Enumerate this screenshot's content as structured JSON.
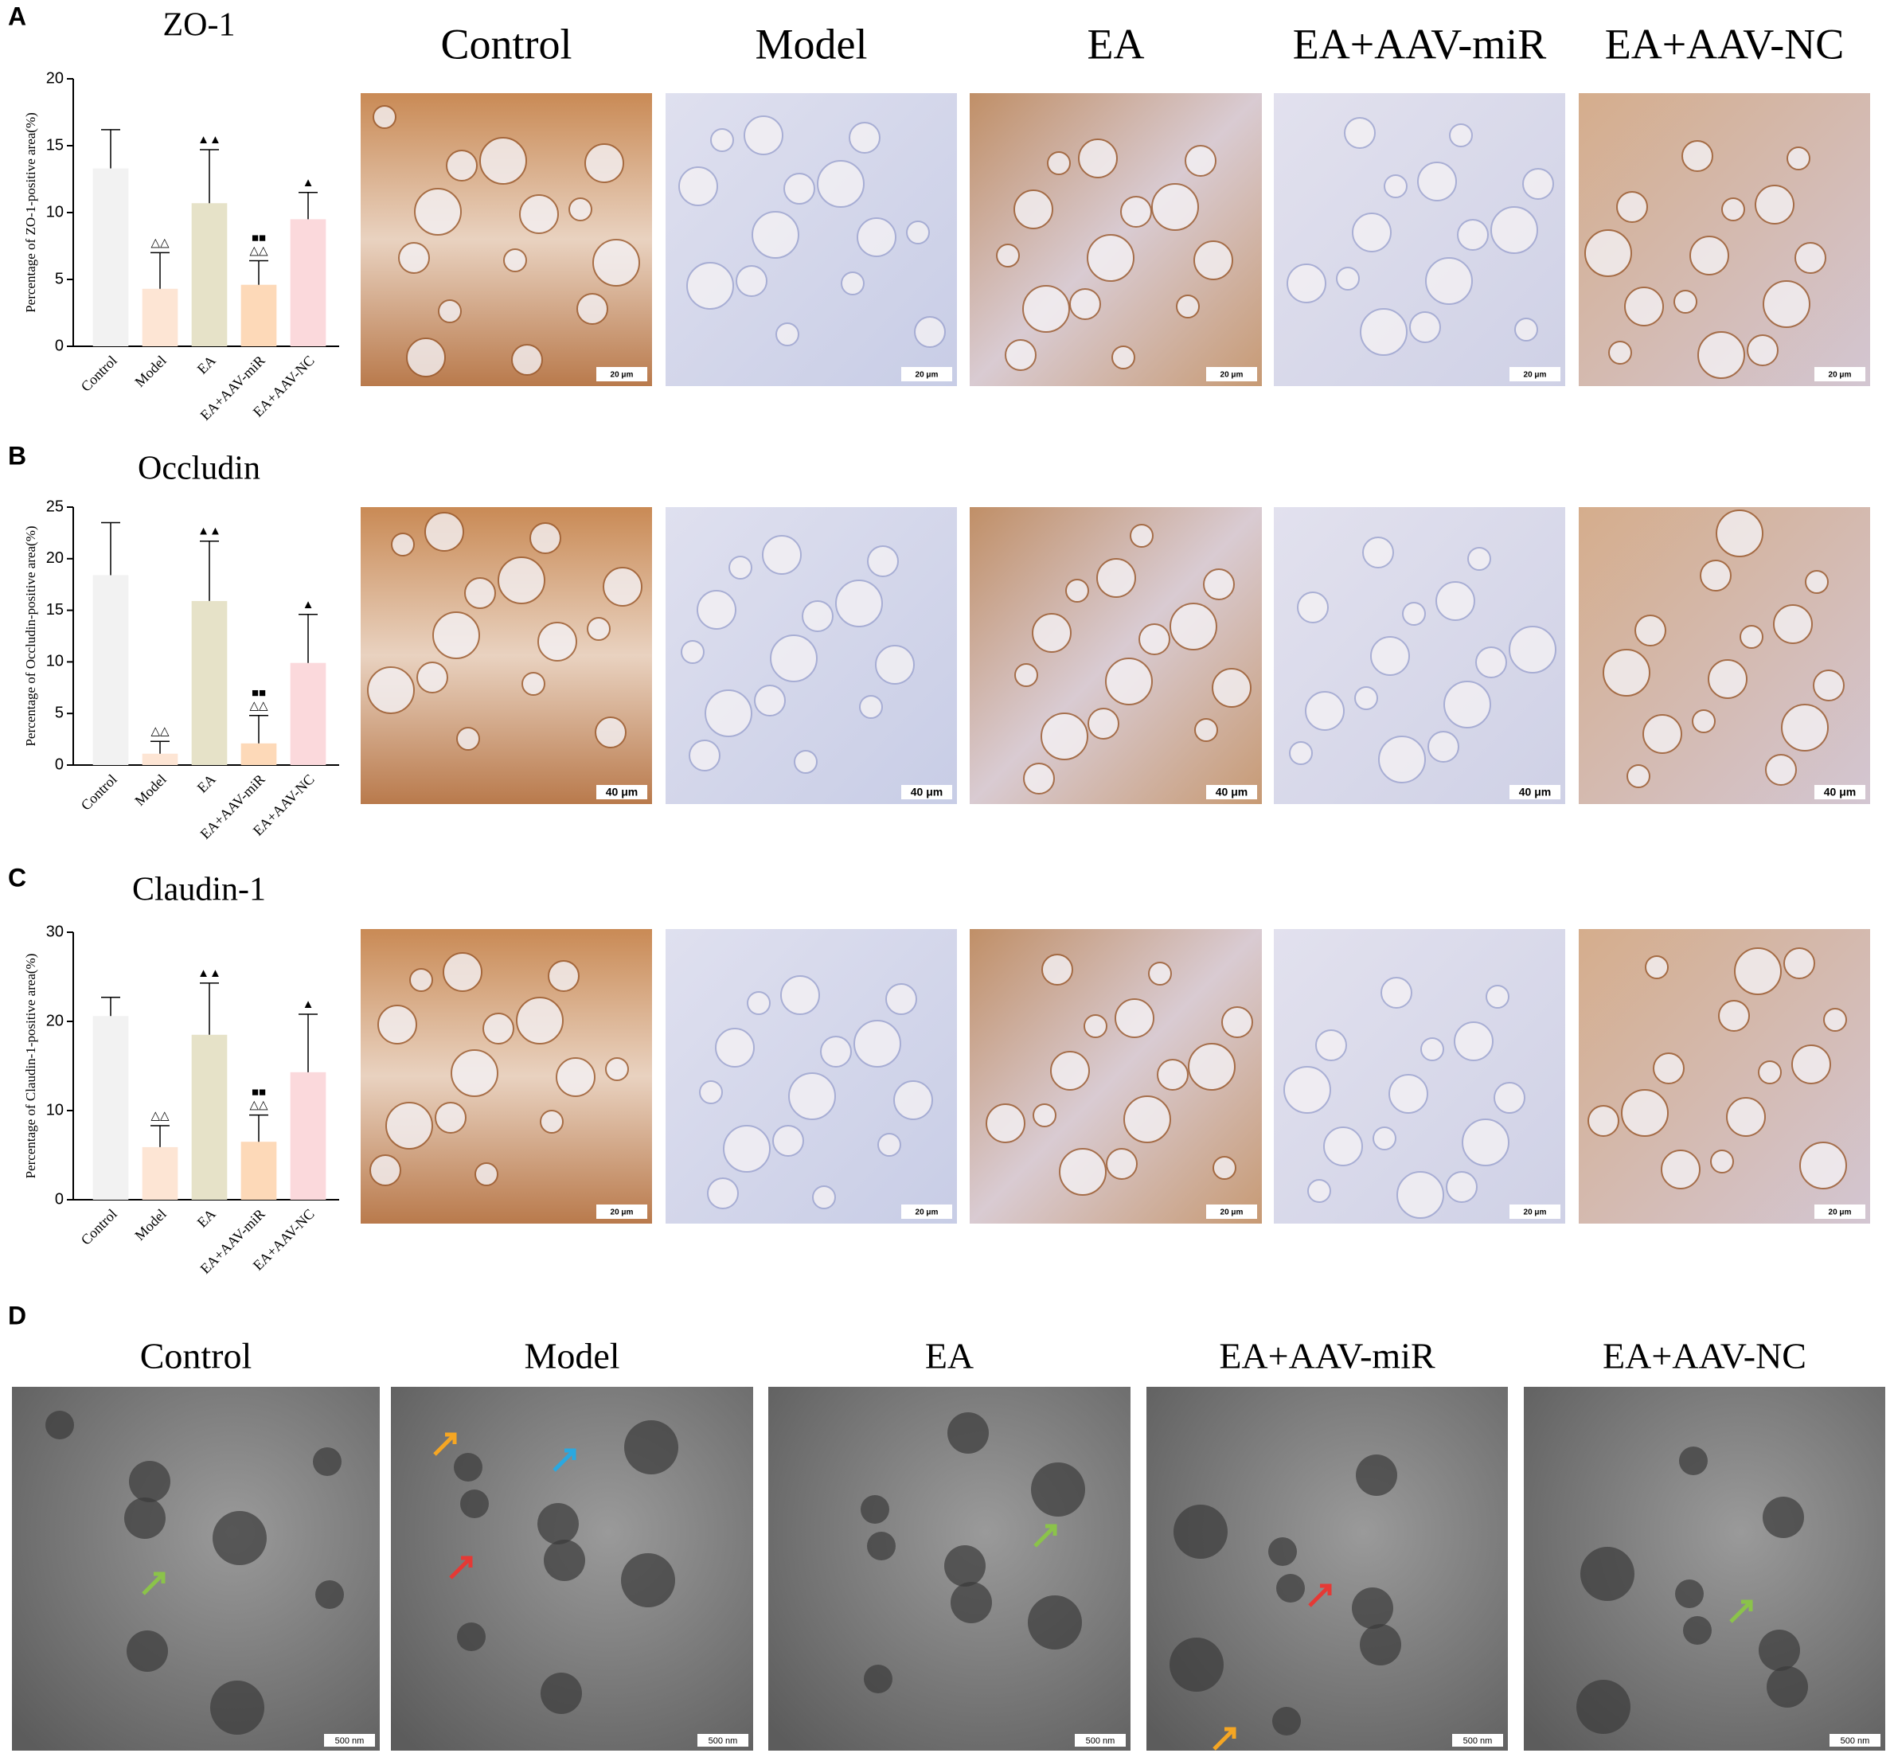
{
  "panel_labels": [
    "A",
    "B",
    "C",
    "D"
  ],
  "column_titles": [
    "Control",
    "Model",
    "EA",
    "EA+AAV-miR",
    "EA+AAV-NC"
  ],
  "scale_bars": [
    "20 μm",
    "40 μm",
    "20 μm",
    "500 nm"
  ],
  "chart_data": [
    {
      "type": "bar",
      "title": "ZO-1",
      "ylabel": "Percentage of ZO-1-positive area(%)",
      "categories": [
        "Control",
        "Model",
        "EA",
        "EA+AAV-miR",
        "EA+AAV-NC"
      ],
      "values": [
        13.3,
        4.3,
        10.7,
        4.6,
        9.5
      ],
      "errors": [
        2.9,
        2.7,
        4.0,
        1.8,
        2.0
      ],
      "colors": [
        "#f2f2f2",
        "#fde5d4",
        "#e6e2c8",
        "#fdd9b8",
        "#fbd9dc"
      ],
      "markers": [
        [],
        [
          "△△"
        ],
        [
          "▲▲"
        ],
        [
          "■■",
          "△△"
        ],
        [
          "▲"
        ]
      ],
      "ylim": [
        0,
        20
      ],
      "yticks": [
        0,
        5,
        10,
        15,
        20
      ]
    },
    {
      "type": "bar",
      "title": "Occludin",
      "ylabel": "Percentage of Occludin-positive area(%)",
      "categories": [
        "Control",
        "Model",
        "EA",
        "EA+AAV-miR",
        "EA+AAV-NC"
      ],
      "values": [
        18.4,
        1.1,
        15.9,
        2.1,
        9.9
      ],
      "errors": [
        5.1,
        1.2,
        5.8,
        2.7,
        4.7
      ],
      "colors": [
        "#f2f2f2",
        "#fde5d4",
        "#e6e2c8",
        "#fdd9b8",
        "#fbd9dc"
      ],
      "markers": [
        [],
        [
          "△△"
        ],
        [
          "▲▲"
        ],
        [
          "■■",
          "△△"
        ],
        [
          "▲"
        ]
      ],
      "ylim": [
        0,
        25
      ],
      "yticks": [
        0,
        5,
        10,
        15,
        20,
        25
      ]
    },
    {
      "type": "bar",
      "title": "Claudin-1",
      "ylabel": "Percentage of Claudin-1-positive area(%)",
      "categories": [
        "Control",
        "Model",
        "EA",
        "EA+AAV-miR",
        "EA+AAV-NC"
      ],
      "values": [
        20.6,
        5.9,
        18.5,
        6.5,
        14.3
      ],
      "errors": [
        2.1,
        2.4,
        5.8,
        3.0,
        6.5
      ],
      "colors": [
        "#f2f2f2",
        "#fde5d4",
        "#e6e2c8",
        "#fdd9b8",
        "#fbd9dc"
      ],
      "markers": [
        [],
        [
          "△△"
        ],
        [
          "▲▲"
        ],
        [
          "■■",
          "△△"
        ],
        [
          "▲"
        ]
      ],
      "ylim": [
        0,
        30
      ],
      "yticks": [
        0,
        10,
        20,
        30
      ]
    }
  ]
}
